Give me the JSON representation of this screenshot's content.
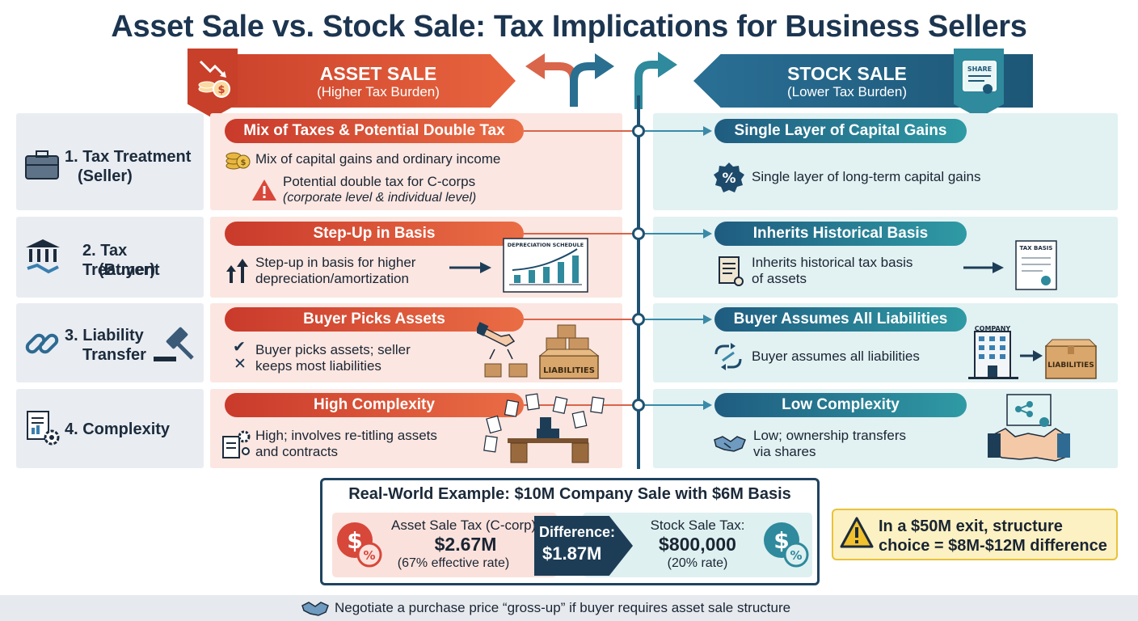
{
  "title": "Asset Sale vs. Stock Sale: Tax Implications for Business Sellers",
  "asset_header": {
    "title": "ASSET SALE",
    "subtitle": "(Higher Tax Burden)"
  },
  "stock_header": {
    "title": "STOCK SALE",
    "subtitle": "(Lower Tax Burden)",
    "badge_text": "SHARE"
  },
  "rows": [
    {
      "label_line1": "1. Tax Treatment",
      "label_line2": "(Seller)",
      "asset_pill": "Mix of Taxes & Potential Double Tax",
      "asset_line1": "Mix of capital gains and ordinary income",
      "asset_line2": "Potential double tax for C-corps",
      "asset_line3": "(corporate level & individual level)",
      "stock_pill": "Single Layer of Capital Gains",
      "stock_line1": "Single layer of long-term capital gains"
    },
    {
      "label_line1": "2. Tax Treatment",
      "label_line2": "(Buyer)",
      "asset_pill": "Step-Up in Basis",
      "asset_line1": "Step-up in basis for higher",
      "asset_line2": "depreciation/amortization",
      "asset_doc": "DEPRECIATION SCHEDULE",
      "stock_pill": "Inherits Historical Basis",
      "stock_line1": "Inherits historical tax basis",
      "stock_line2": "of assets",
      "stock_doc": "TAX BASIS"
    },
    {
      "label_line1": "3. Liability",
      "label_line2": "Transfer",
      "asset_pill": "Buyer Picks Assets",
      "asset_line1": "Buyer picks assets; seller",
      "asset_line2": "keeps most liabilities",
      "asset_box": "LIABILITIES",
      "stock_pill": "Buyer Assumes All Liabilities",
      "stock_line1": "Buyer assumes all liabilities",
      "stock_company": "COMPANY",
      "stock_box": "LIABILITIES"
    },
    {
      "label_line1": "4. Complexity",
      "asset_pill": "High Complexity",
      "asset_line1": "High; involves re-titling assets",
      "asset_line2": "and contracts",
      "stock_pill": "Low Complexity",
      "stock_line1": "Low; ownership transfers",
      "stock_line2": "via shares"
    }
  ],
  "example": {
    "title": "Real-World Example: $10M Company Sale with $6M Basis",
    "asset_label": "Asset Sale Tax (C-corp):",
    "asset_value": "$2.67M",
    "asset_rate": "(67% effective rate)",
    "diff_label": "Difference:",
    "diff_value": "$1.87M",
    "stock_label": "Stock Sale Tax:",
    "stock_value": "$800,000",
    "stock_rate": "(20% rate)"
  },
  "warning": {
    "line1": "In a $50M exit, structure",
    "line2": "choice = $8M-$12M difference"
  },
  "footer": "Negotiate a purchase price “gross-up” if buyer requires asset sale structure",
  "colors": {
    "asset": "#e0553a",
    "stock": "#2a7fa0",
    "dark": "#1c3550",
    "warning": "#f2c12e"
  }
}
